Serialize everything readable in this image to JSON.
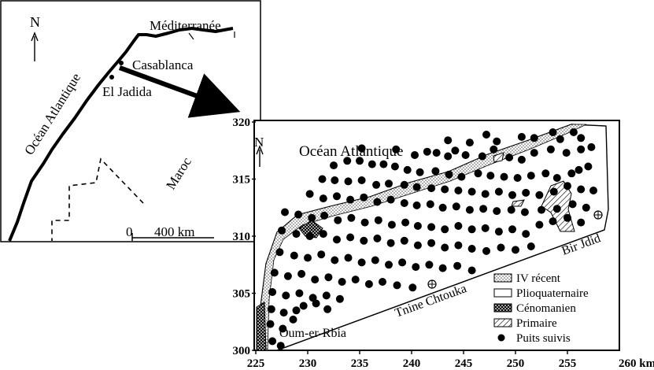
{
  "inset": {
    "north_label": "N",
    "sea_north": "Méditerranée",
    "ocean": "Océan Atlantique",
    "city_1": "Casablanca",
    "city_2": "El Jadida",
    "country": "Maroc",
    "scale_zero": "0",
    "scale_label": "400 km"
  },
  "main_map": {
    "north_label": "N",
    "ocean": "Océan Atlantique",
    "places": [
      "Oum-er-Rbia",
      "Tnine Chtouka",
      "Bir Jdid"
    ],
    "x_axis": {
      "ticks": [
        "225",
        "230",
        "235",
        "240",
        "245",
        "250",
        "255"
      ],
      "end_label": "260 km",
      "range": [
        225,
        260
      ]
    },
    "y_axis": {
      "ticks": [
        "300",
        "305",
        "310",
        "315",
        "320"
      ],
      "range": [
        300,
        320
      ]
    },
    "legend": [
      {
        "label": "IV récent",
        "swatch": "dotted"
      },
      {
        "label": "Plioquaternaire",
        "swatch": "blank"
      },
      {
        "label": "Cénomanien",
        "swatch": "crosshatch"
      },
      {
        "label": "Primaire",
        "swatch": "hatch"
      },
      {
        "label": "Puits suivis",
        "swatch": "dot"
      }
    ],
    "wells": [
      [
        243.5,
        318.4
      ],
      [
        245.6,
        318.2
      ],
      [
        247.2,
        318.9
      ],
      [
        248.2,
        318.3
      ],
      [
        250.6,
        318.7
      ],
      [
        251.8,
        318.6
      ],
      [
        253.6,
        319.1
      ],
      [
        254.3,
        318.5
      ],
      [
        255.6,
        319.1
      ],
      [
        256.3,
        318.6
      ],
      [
        235.2,
        317.7
      ],
      [
        238.5,
        317.6
      ],
      [
        240.3,
        317.1
      ],
      [
        241.5,
        317.4
      ],
      [
        242.4,
        317.3
      ],
      [
        243.5,
        317.0
      ],
      [
        244.2,
        317.5
      ],
      [
        245.2,
        317.1
      ],
      [
        246.8,
        317.0
      ],
      [
        247.9,
        317.6
      ],
      [
        249.4,
        316.9
      ],
      [
        250.6,
        316.7
      ],
      [
        251.8,
        317.3
      ],
      [
        253.4,
        317.6
      ],
      [
        254.9,
        317.3
      ],
      [
        256.3,
        317.6
      ],
      [
        257.3,
        317.8
      ],
      [
        232.5,
        316.2
      ],
      [
        233.8,
        316.6
      ],
      [
        235.0,
        316.6
      ],
      [
        236.2,
        316.3
      ],
      [
        237.3,
        316.3
      ],
      [
        238.4,
        316.1
      ],
      [
        239.6,
        315.8
      ],
      [
        240.8,
        315.6
      ],
      [
        242.3,
        315.7
      ],
      [
        243.6,
        315.4
      ],
      [
        244.8,
        315.2
      ],
      [
        246.4,
        315.5
      ],
      [
        247.6,
        315.3
      ],
      [
        248.9,
        315.2
      ],
      [
        250.2,
        315.1
      ],
      [
        251.5,
        315.3
      ],
      [
        252.9,
        315.5
      ],
      [
        254.0,
        315.1
      ],
      [
        255.4,
        315.5
      ],
      [
        256.1,
        315.8
      ],
      [
        257.0,
        316.1
      ],
      [
        231.4,
        315.0
      ],
      [
        232.6,
        314.9
      ],
      [
        233.9,
        314.8
      ],
      [
        235.2,
        314.9
      ],
      [
        236.6,
        314.5
      ],
      [
        237.8,
        314.6
      ],
      [
        239.3,
        314.5
      ],
      [
        240.5,
        314.3
      ],
      [
        241.9,
        314.2
      ],
      [
        243.2,
        314.1
      ],
      [
        244.5,
        314.0
      ],
      [
        245.8,
        313.9
      ],
      [
        247.1,
        313.7
      ],
      [
        248.4,
        313.9
      ],
      [
        249.7,
        313.6
      ],
      [
        251.0,
        313.8
      ],
      [
        252.3,
        313.6
      ],
      [
        253.7,
        313.9
      ],
      [
        255.0,
        314.4
      ],
      [
        256.3,
        314.1
      ],
      [
        257.5,
        314.0
      ],
      [
        230.2,
        313.7
      ],
      [
        231.5,
        313.3
      ],
      [
        232.8,
        313.5
      ],
      [
        234.1,
        313.2
      ],
      [
        235.4,
        313.4
      ],
      [
        236.7,
        313.0
      ],
      [
        238.0,
        313.2
      ],
      [
        239.3,
        312.9
      ],
      [
        240.5,
        312.7
      ],
      [
        241.8,
        312.8
      ],
      [
        243.0,
        312.5
      ],
      [
        244.3,
        312.6
      ],
      [
        245.6,
        312.3
      ],
      [
        246.9,
        312.4
      ],
      [
        248.2,
        312.2
      ],
      [
        249.6,
        312.3
      ],
      [
        250.9,
        312.1
      ],
      [
        252.5,
        312.3
      ],
      [
        254.0,
        312.4
      ],
      [
        255.5,
        312.8
      ],
      [
        256.8,
        312.5
      ],
      [
        227.8,
        312.1
      ],
      [
        229.1,
        311.9
      ],
      [
        230.4,
        311.6
      ],
      [
        231.6,
        311.8
      ],
      [
        232.9,
        311.4
      ],
      [
        234.2,
        311.6
      ],
      [
        235.5,
        311.2
      ],
      [
        236.8,
        311.4
      ],
      [
        238.1,
        311.0
      ],
      [
        239.4,
        311.2
      ],
      [
        240.6,
        310.9
      ],
      [
        241.9,
        310.8
      ],
      [
        243.2,
        310.6
      ],
      [
        244.5,
        310.9
      ],
      [
        245.8,
        310.6
      ],
      [
        247.1,
        310.7
      ],
      [
        248.4,
        310.4
      ],
      [
        249.7,
        310.6
      ],
      [
        251.0,
        310.2
      ],
      [
        252.3,
        311.0
      ],
      [
        253.6,
        311.3
      ],
      [
        255.0,
        311.6
      ],
      [
        256.3,
        311.2
      ],
      [
        227.5,
        310.5
      ],
      [
        228.9,
        310.2
      ],
      [
        230.2,
        310.0
      ],
      [
        231.5,
        310.2
      ],
      [
        232.8,
        309.7
      ],
      [
        234.1,
        309.9
      ],
      [
        235.4,
        309.6
      ],
      [
        236.7,
        309.8
      ],
      [
        238.0,
        309.4
      ],
      [
        239.3,
        309.6
      ],
      [
        240.6,
        309.2
      ],
      [
        241.9,
        309.4
      ],
      [
        243.2,
        309.0
      ],
      [
        244.5,
        309.2
      ],
      [
        245.8,
        308.9
      ],
      [
        247.2,
        308.7
      ],
      [
        248.6,
        309.0
      ],
      [
        250.0,
        308.8
      ],
      [
        251.5,
        309.1
      ],
      [
        227.3,
        308.6
      ],
      [
        228.7,
        308.3
      ],
      [
        230.0,
        308.1
      ],
      [
        231.3,
        308.4
      ],
      [
        232.6,
        307.9
      ],
      [
        233.9,
        308.1
      ],
      [
        235.2,
        307.7
      ],
      [
        236.5,
        307.9
      ],
      [
        237.8,
        307.5
      ],
      [
        239.1,
        307.7
      ],
      [
        240.4,
        307.3
      ],
      [
        241.7,
        307.5
      ],
      [
        243.0,
        307.2
      ],
      [
        244.4,
        307.4
      ],
      [
        245.8,
        307.0
      ],
      [
        226.8,
        306.8
      ],
      [
        228.1,
        306.5
      ],
      [
        229.4,
        306.7
      ],
      [
        230.7,
        306.2
      ],
      [
        232.0,
        306.4
      ],
      [
        233.3,
        306.0
      ],
      [
        234.6,
        306.2
      ],
      [
        235.9,
        305.8
      ],
      [
        237.2,
        306.0
      ],
      [
        238.6,
        305.7
      ],
      [
        240.1,
        305.5
      ],
      [
        226.6,
        305.1
      ],
      [
        227.9,
        304.8
      ],
      [
        229.2,
        305.0
      ],
      [
        230.5,
        304.6
      ],
      [
        231.8,
        304.8
      ],
      [
        233.1,
        304.5
      ],
      [
        226.5,
        303.6
      ],
      [
        227.7,
        303.3
      ],
      [
        228.9,
        303.5
      ],
      [
        226.4,
        302.3
      ],
      [
        227.6,
        301.9
      ],
      [
        226.6,
        300.8
      ],
      [
        227.4,
        300.4
      ],
      [
        228.6,
        302.7
      ],
      [
        229.6,
        303.9
      ],
      [
        230.8,
        304.1
      ],
      [
        231.9,
        303.6
      ]
    ]
  }
}
